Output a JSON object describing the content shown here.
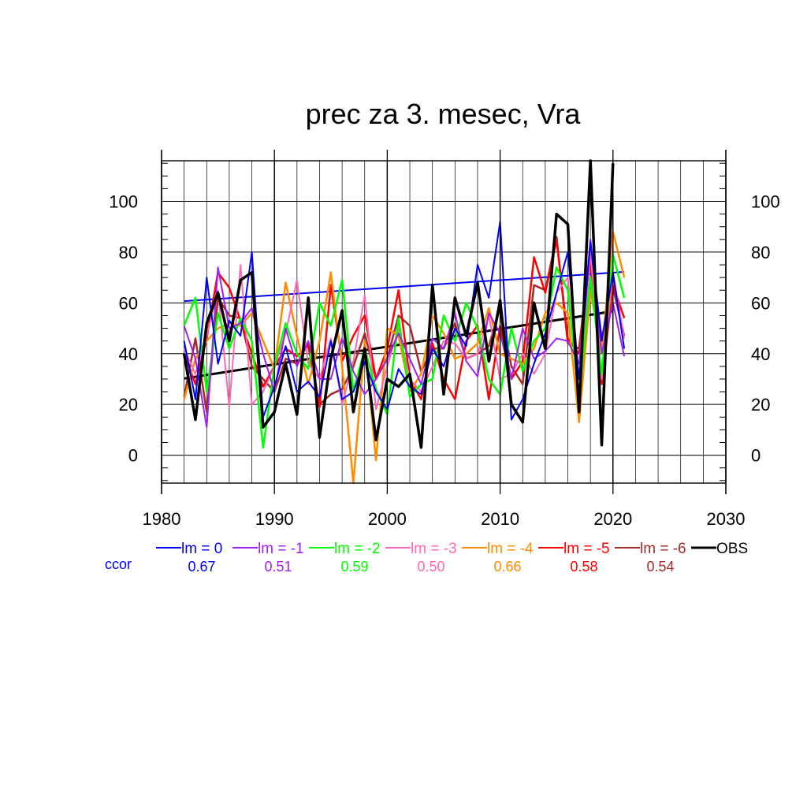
{
  "chart_data": {
    "type": "line",
    "title": "prec za 3. mesec, Vra",
    "xlabel": "",
    "ylabel": "",
    "xlim": [
      1980,
      2030
    ],
    "ylim": [
      -11,
      116
    ],
    "x_ticks": [
      1980,
      1990,
      2000,
      2010,
      2020,
      2030
    ],
    "y_ticks": [
      0,
      20,
      40,
      60,
      80,
      100
    ],
    "grid": true,
    "legend_position": "bottom",
    "ccor_label": "ccor",
    "years": [
      1982,
      1983,
      1984,
      1985,
      1986,
      1987,
      1988,
      1989,
      1990,
      1991,
      1992,
      1993,
      1994,
      1995,
      1996,
      1997,
      1998,
      1999,
      2000,
      2001,
      2002,
      2003,
      2004,
      2005,
      2006,
      2007,
      2008,
      2009,
      2010,
      2011,
      2012,
      2013,
      2014,
      2015,
      2016,
      2017,
      2018,
      2019,
      2020,
      2021
    ],
    "series": [
      {
        "name": "lm = 0",
        "color": "#0000ff",
        "width": 2,
        "ccor": "0.67",
        "values": [
          45,
          22,
          70,
          36,
          53,
          47,
          80,
          15,
          27,
          43,
          25,
          29,
          23,
          45,
          22,
          25,
          37,
          25,
          18,
          34,
          27,
          24,
          42,
          35,
          50,
          43,
          75,
          62,
          92,
          14,
          22,
          36,
          48,
          64,
          80,
          30,
          84,
          45,
          72,
          42
        ],
        "trend": [
          60.7,
          72.2
        ]
      },
      {
        "name": "lm = -1",
        "color": "#a020f0",
        "width": 2,
        "ccor": "0.51",
        "values": [
          51,
          38,
          11,
          74,
          50,
          52,
          58,
          40,
          25,
          50,
          35,
          45,
          30,
          30,
          46,
          33,
          24,
          30,
          38,
          48,
          38,
          28,
          46,
          42,
          56,
          37,
          31,
          56,
          48,
          30,
          50,
          38,
          41,
          46,
          45,
          36,
          85,
          40,
          60,
          39
        ]
      },
      {
        "name": "lm = -2",
        "color": "#00ff00",
        "width": 2.5,
        "ccor": "0.59",
        "values": [
          51,
          62,
          25,
          56,
          42,
          54,
          45,
          3,
          35,
          52,
          40,
          34,
          60,
          51,
          69,
          25,
          42,
          26,
          16,
          54,
          23,
          28,
          30,
          55,
          45,
          60,
          50,
          30,
          24,
          50,
          33,
          45,
          50,
          74,
          65,
          22,
          70,
          32,
          79,
          62
        ]
      },
      {
        "name": "lm = -3",
        "color": "#ff69b4",
        "width": 2,
        "ccor": "0.50",
        "values": [
          42,
          32,
          47,
          65,
          19,
          75,
          20,
          25,
          35,
          48,
          69,
          36,
          30,
          46,
          20,
          37,
          63,
          18,
          35,
          50,
          30,
          25,
          35,
          45,
          44,
          38,
          40,
          55,
          30,
          32,
          40,
          32,
          40,
          64,
          70,
          20,
          80,
          30,
          72,
          46
        ]
      },
      {
        "name": "lm = -4",
        "color": "#ff8c00",
        "width": 2.5,
        "ccor": "0.66",
        "values": [
          22,
          38,
          45,
          50,
          52,
          51,
          56,
          45,
          34,
          68,
          47,
          28,
          45,
          72,
          35,
          -11,
          45,
          -2,
          50,
          47,
          25,
          32,
          55,
          48,
          38,
          40,
          44,
          58,
          40,
          38,
          36,
          42,
          56,
          60,
          56,
          13,
          65,
          40,
          88,
          70
        ]
      },
      {
        "name": "lm = -5",
        "color": "#ff0000",
        "width": 2.5,
        "ccor": "0.58",
        "values": [
          40,
          28,
          46,
          72,
          66,
          53,
          40,
          27,
          35,
          42,
          39,
          43,
          19,
          67,
          37,
          47,
          55,
          30,
          42,
          65,
          30,
          22,
          44,
          30,
          22,
          45,
          51,
          22,
          51,
          30,
          37,
          78,
          64,
          85,
          46,
          40,
          77,
          28,
          67,
          54
        ]
      },
      {
        "name": "lm = -6",
        "color": "#a52a2a",
        "width": 2.5,
        "ccor": "0.54",
        "values": [
          23,
          46,
          17,
          62,
          55,
          54,
          35,
          30,
          25,
          38,
          36,
          44,
          20,
          24,
          26,
          35,
          48,
          30,
          38,
          55,
          51,
          33,
          42,
          42,
          52,
          38,
          40,
          43,
          58,
          35,
          28,
          67,
          65,
          86,
          44,
          42,
          82,
          46,
          66,
          47
        ]
      },
      {
        "name": "OBS",
        "color": "#000000",
        "width": 3.5,
        "ccor": "",
        "values": [
          40,
          14,
          52,
          64,
          45,
          69,
          72,
          11,
          17,
          36,
          16,
          62,
          7,
          38,
          57,
          17,
          42,
          6,
          30,
          27,
          32,
          3,
          67,
          24,
          62,
          47,
          68,
          37,
          61,
          20,
          13,
          60,
          42,
          95,
          91,
          17,
          117,
          4,
          115,
          null
        ],
        "trend": [
          30.2,
          56.7
        ]
      }
    ]
  }
}
